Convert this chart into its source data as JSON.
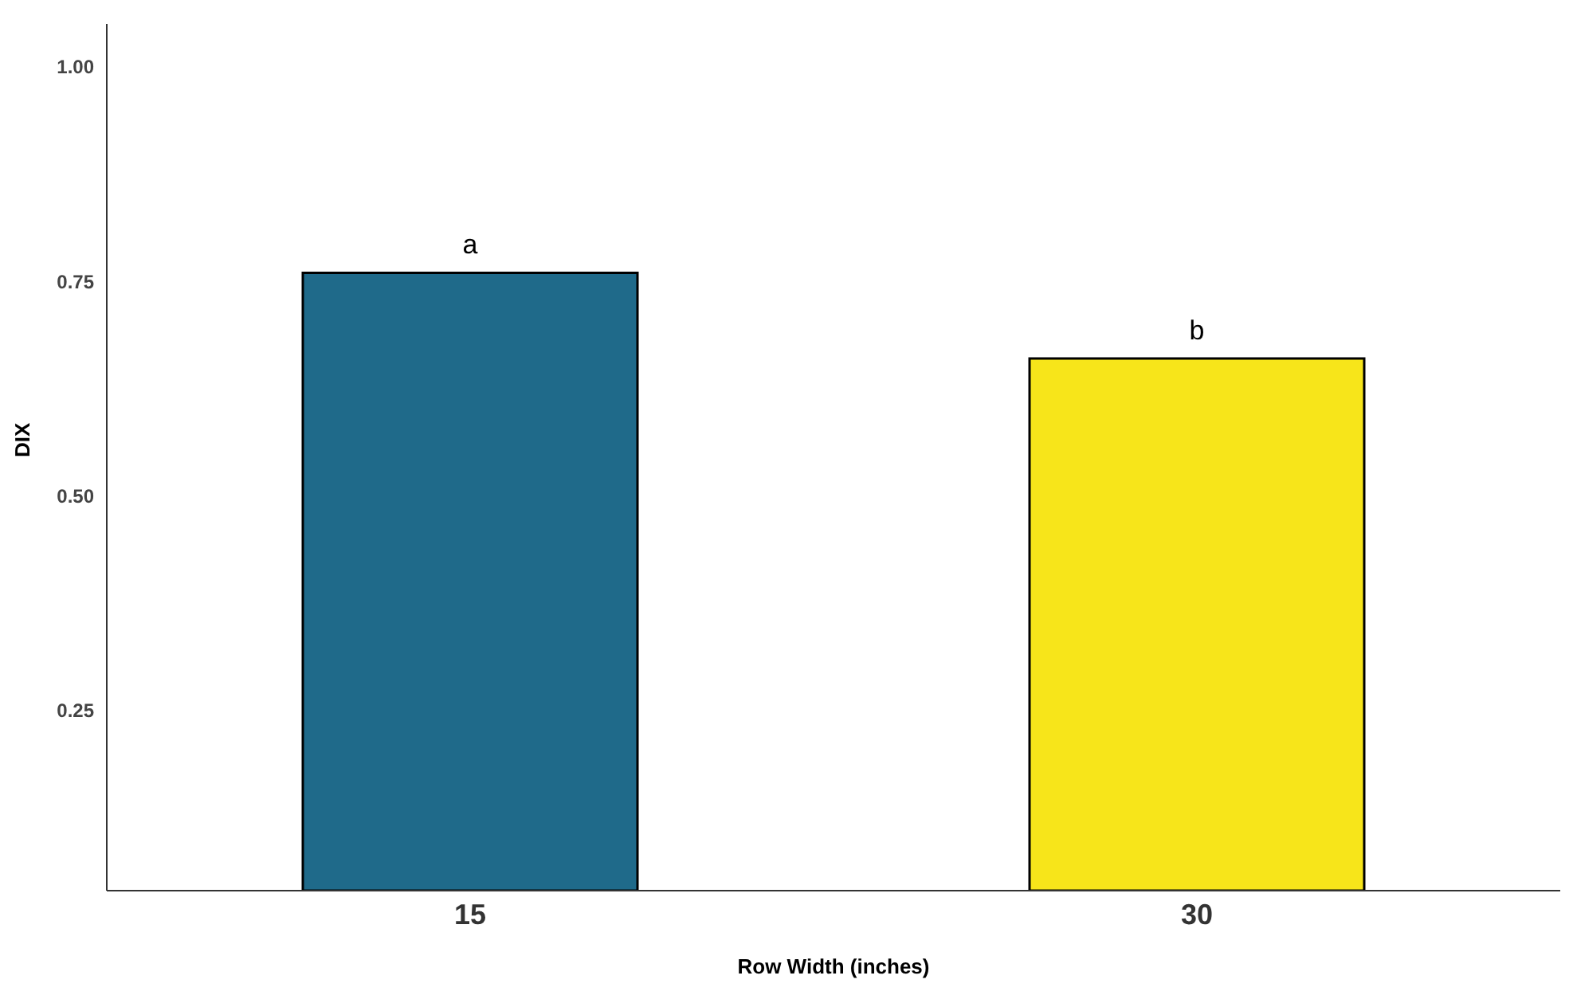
{
  "chart_data": {
    "type": "bar",
    "xlabel": "Row Width (inches)",
    "ylabel": "DIX",
    "categories": [
      "15",
      "30"
    ],
    "values": [
      0.76,
      0.66
    ],
    "colors": [
      "#1f6a8a",
      "#f7e51a"
    ],
    "ylim": [
      0.04,
      1.05
    ],
    "yticks": [
      0.25,
      {
        "value": 0.5,
        "label": "0.50"
      },
      0.75,
      {
        "value": 1,
        "label": "1.00"
      }
    ],
    "grid": false,
    "annotations": [
      {
        "text": "a",
        "x": "15",
        "y": 0.76
      },
      {
        "text": "b",
        "x": "30",
        "y": 0.66
      }
    ]
  }
}
